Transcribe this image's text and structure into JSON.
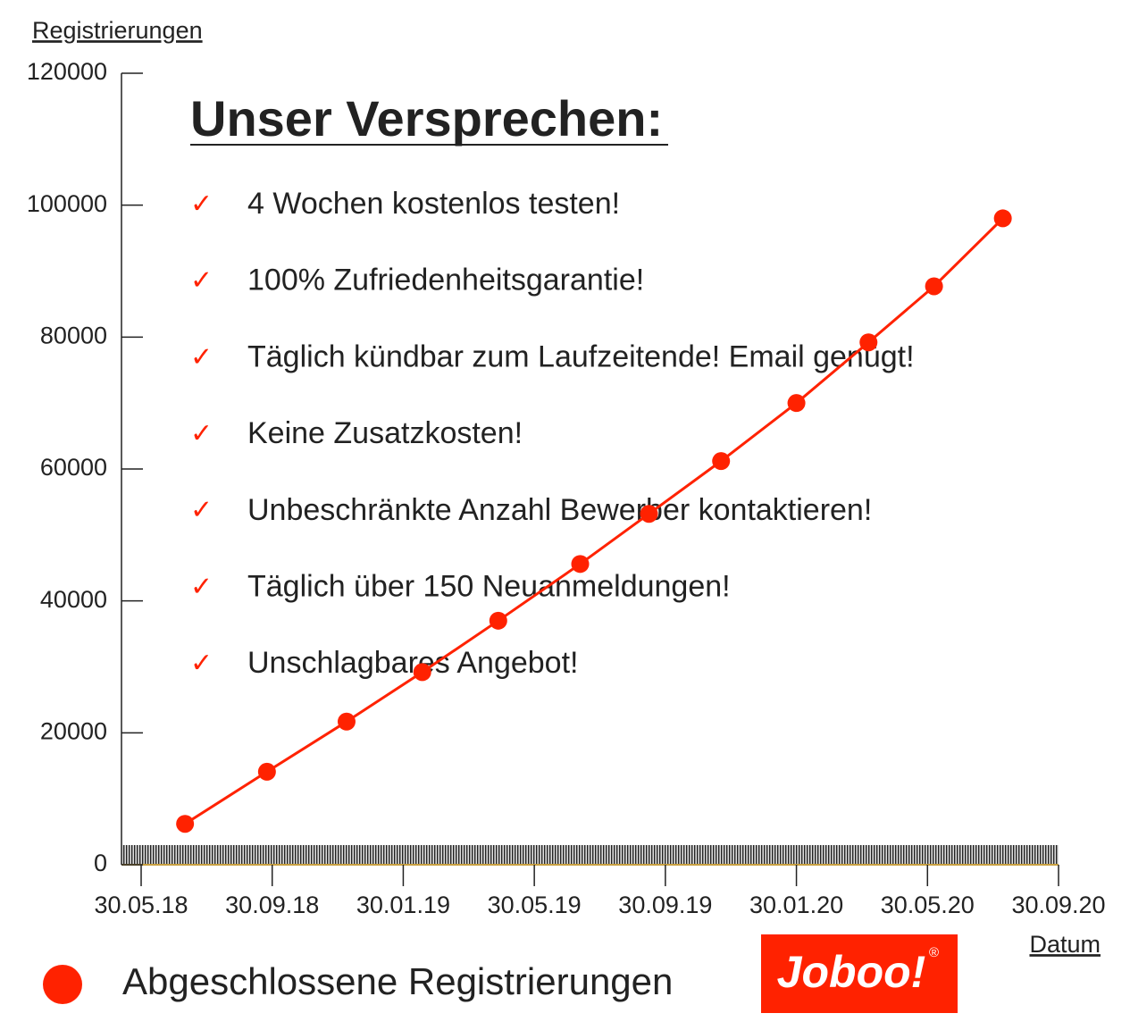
{
  "chart_data": {
    "type": "line",
    "title": "Unser Versprechen:",
    "annotations": [
      "4 Wochen kostenlos testen!",
      "100% Zufriedenheitsgarantie!",
      "Täglich kündbar zum Laufzeitende! Email genügt!",
      "Keine Zusatzkosten!",
      "Unbeschränkte Anzahl Bewerber kontaktieren!",
      "Täglich über 150 Neuanmeldungen!",
      "Unschlagbares Angebot!"
    ],
    "y_label": "Registrierungen",
    "x_label": "Datum",
    "logo": "Joboo!",
    "logo_mark": "®",
    "x": [
      1.34,
      3.84,
      6.27,
      8.58,
      10.9,
      13.4,
      15.5,
      17.7,
      20.0,
      22.2,
      24.2,
      26.3
    ],
    "series": [
      {
        "name": "Abgeschlossene Registrierungen",
        "color": "#ff2200",
        "values": [
          6200,
          14100,
          21700,
          29200,
          37000,
          45600,
          53200,
          61200,
          70000,
          79200,
          87700,
          98000
        ]
      }
    ],
    "xlim": [
      -0.6,
      28
    ],
    "xticks": [
      {
        "value": 0,
        "label": "30.05.18"
      },
      {
        "value": 4,
        "label": "30.09.18"
      },
      {
        "value": 8,
        "label": "30.01.19"
      },
      {
        "value": 12,
        "label": "30.05.19"
      },
      {
        "value": 16,
        "label": "30.09.19"
      },
      {
        "value": 20,
        "label": "30.01.20"
      },
      {
        "value": 24,
        "label": "30.05.20"
      },
      {
        "value": 28,
        "label": "30.09.20"
      }
    ],
    "ylim": [
      0,
      120000
    ],
    "yticks": [
      0,
      20000,
      40000,
      60000,
      80000,
      100000,
      120000
    ]
  }
}
